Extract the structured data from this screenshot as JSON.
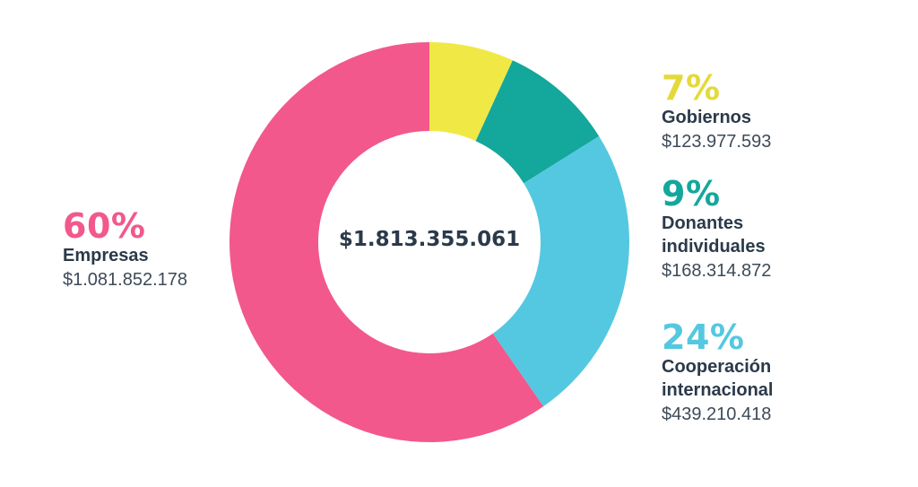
{
  "chart_data": {
    "type": "pie",
    "variant": "donut",
    "center_label": "$1.813.355.061",
    "slices": [
      {
        "name": "Gobiernos",
        "percent_label": "7%",
        "amount_label": "$123.977.593",
        "value": 123977593,
        "color": "#f0e945"
      },
      {
        "name": "Donantes individuales",
        "name_lines": [
          "Donantes",
          "individuales"
        ],
        "percent_label": "9%",
        "amount_label": "$168.314.872",
        "value": 168314872,
        "color": "#14a79c"
      },
      {
        "name": "Cooperación internacional",
        "name_lines": [
          "Cooperación",
          "internacional"
        ],
        "percent_label": "24%",
        "amount_label": "$439.210.418",
        "value": 439210418,
        "color": "#54c8e0"
      },
      {
        "name": "Empresas",
        "name_lines": [
          "Empresas"
        ],
        "percent_label": "60%",
        "amount_label": "$1.081.852.178",
        "value": 1081852178,
        "color": "#f2588b"
      }
    ]
  },
  "legend": {
    "gobiernos": {
      "percent": "7%",
      "name": "Gobiernos",
      "amount": "$123.977.593"
    },
    "donantes": {
      "percent": "9%",
      "name_line1": "Donantes",
      "name_line2": "individuales",
      "amount": "$168.314.872"
    },
    "cooperacion": {
      "percent": "24%",
      "name_line1": "Cooperación",
      "name_line2": "internacional",
      "amount": "$439.210.418"
    },
    "empresas": {
      "percent": "60%",
      "name": "Empresas",
      "amount": "$1.081.852.178"
    }
  },
  "colors": {
    "gobiernos": "#f0e945",
    "donantes": "#14a79c",
    "cooperacion": "#54c8e0",
    "empresas": "#f2588b",
    "gobiernos_text": "#e4d93a"
  }
}
